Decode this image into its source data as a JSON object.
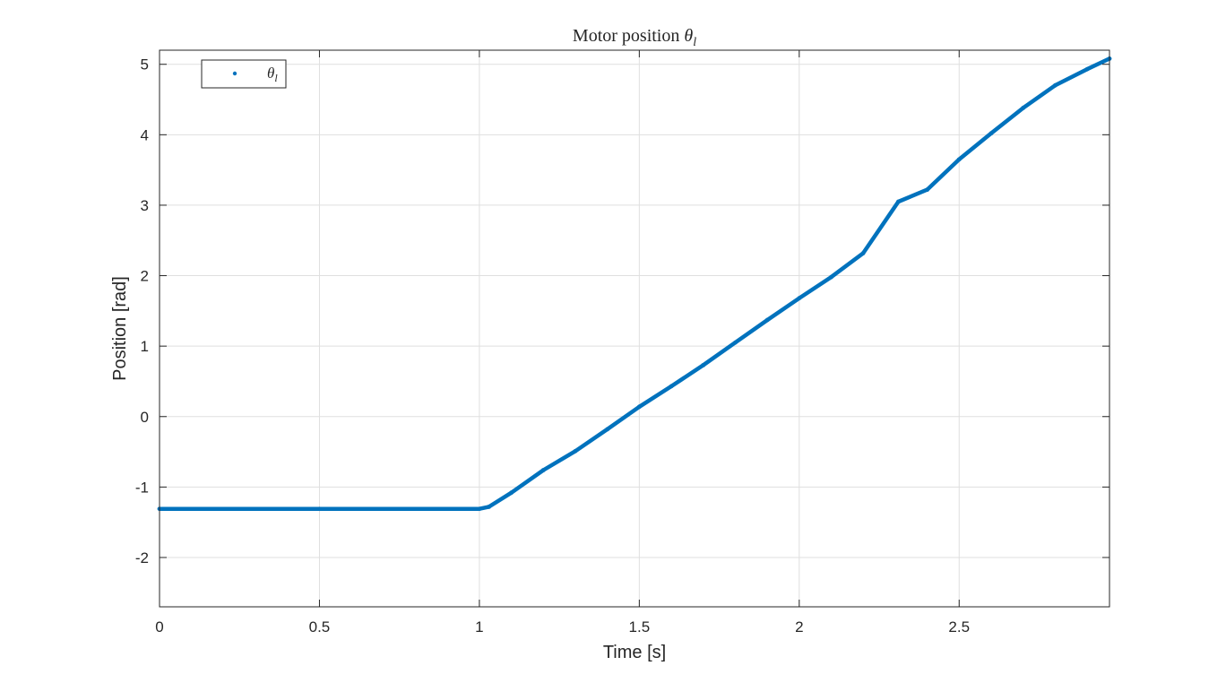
{
  "chart_data": {
    "type": "line",
    "title_prefix": "Motor position ",
    "title_symbol": "θ",
    "title_subscript": "l",
    "xlabel": "Time [s]",
    "ylabel": "Position [rad]",
    "xlim": [
      0,
      2.97
    ],
    "ylim": [
      -2.7,
      5.2
    ],
    "x_ticks": [
      0,
      0.5,
      1,
      1.5,
      2,
      2.5
    ],
    "x_tick_labels": [
      "0",
      "0.5",
      "1",
      "1.5",
      "2",
      "2.5"
    ],
    "y_ticks": [
      -2,
      -1,
      0,
      1,
      2,
      3,
      4,
      5
    ],
    "y_tick_labels": [
      "-2",
      "-1",
      "0",
      "1",
      "2",
      "3",
      "4",
      "5"
    ],
    "grid": true,
    "legend_position": "top-left",
    "series": [
      {
        "name_symbol": "θ",
        "name_subscript": "l",
        "color": "#0072BD",
        "marker": "dot",
        "x": [
          0,
          0.5,
          1.0,
          1.03,
          1.1,
          1.2,
          1.3,
          1.4,
          1.5,
          1.6,
          1.7,
          1.8,
          1.9,
          2.0,
          2.1,
          2.2,
          2.31,
          2.4,
          2.5,
          2.6,
          2.7,
          2.8,
          2.9,
          2.97
        ],
        "y": [
          -1.31,
          -1.31,
          -1.31,
          -1.28,
          -1.08,
          -0.76,
          -0.49,
          -0.18,
          0.14,
          0.43,
          0.73,
          1.05,
          1.37,
          1.68,
          1.98,
          2.32,
          3.05,
          3.22,
          3.65,
          4.02,
          4.38,
          4.7,
          4.93,
          5.08
        ]
      }
    ]
  }
}
